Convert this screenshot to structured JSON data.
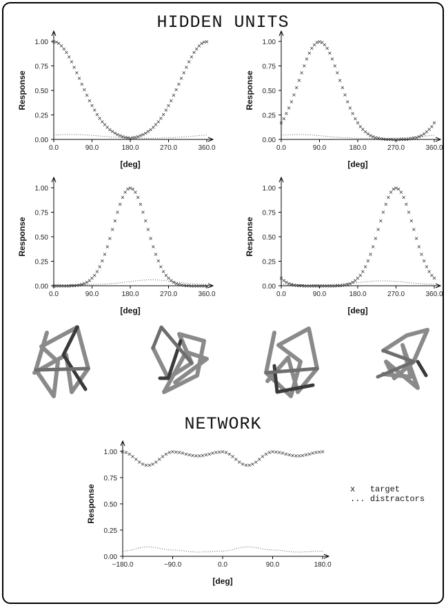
{
  "titles": {
    "hidden": "HIDDEN UNITS",
    "network": "NETWORK"
  },
  "legend": {
    "target_marker": "x",
    "target_label": "target",
    "distractor_marker": "...",
    "distractor_label": "distractors"
  },
  "objects": [
    {
      "name": "wire-object-1"
    },
    {
      "name": "wire-object-2"
    },
    {
      "name": "wire-object-3"
    },
    {
      "name": "wire-object-4"
    }
  ],
  "colors": {
    "marker": "#222222",
    "tube": "#8a8a8a",
    "tube_dark": "#3a3a3a",
    "axis": "#000000"
  },
  "chart_data": [
    {
      "id": "hidden-unit-1",
      "type": "scatter",
      "xlabel": "[deg]",
      "ylabel": "Response",
      "xlim": [
        0,
        360
      ],
      "ylim": [
        0,
        1
      ],
      "xticks": [
        "0.0",
        "90.0",
        "180.0",
        "270.0",
        "360.0"
      ],
      "yticks": [
        "0.00",
        "0.25",
        "0.50",
        "0.75",
        "1.00"
      ],
      "target_curve": {
        "kind": "gaussian",
        "center": 0,
        "sigma": 62,
        "period": 360,
        "peak": 1.0,
        "marker": "x"
      },
      "distractor_curve": {
        "kind": "gaussian",
        "center": 40,
        "sigma": 70,
        "period": 360,
        "peak": 0.05,
        "base": 0.01,
        "style": "dotted"
      }
    },
    {
      "id": "hidden-unit-2",
      "type": "scatter",
      "xlabel": "[deg]",
      "ylabel": "Response",
      "xlim": [
        0,
        360
      ],
      "ylim": [
        0,
        1
      ],
      "xticks": [
        "0.0",
        "90.0",
        "180.0",
        "270.0",
        "360.0"
      ],
      "yticks": [
        "0.00",
        "0.25",
        "0.50",
        "0.75",
        "1.00"
      ],
      "target_curve": {
        "kind": "gaussian",
        "center": 90,
        "sigma": 48,
        "period": 360,
        "peak": 1.0,
        "marker": "x"
      },
      "distractor_curve": {
        "kind": "gaussian",
        "center": 40,
        "sigma": 60,
        "period": 360,
        "peak": 0.05,
        "base": 0.01,
        "style": "dotted"
      }
    },
    {
      "id": "hidden-unit-3",
      "type": "scatter",
      "xlabel": "[deg]",
      "ylabel": "Response",
      "xlim": [
        0,
        360
      ],
      "ylim": [
        0,
        1
      ],
      "xticks": [
        "0.0",
        "90.0",
        "180.0",
        "270.0",
        "360.0"
      ],
      "yticks": [
        "0.00",
        "0.25",
        "0.50",
        "0.75",
        "1.00"
      ],
      "target_curve": {
        "kind": "gaussian",
        "center": 180,
        "sigma": 40,
        "period": 360,
        "peak": 1.0,
        "marker": "x"
      },
      "distractor_curve": {
        "kind": "gaussian",
        "center": 230,
        "sigma": 55,
        "period": 360,
        "peak": 0.06,
        "base": 0.01,
        "style": "dotted"
      }
    },
    {
      "id": "hidden-unit-4",
      "type": "scatter",
      "xlabel": "[deg]",
      "ylabel": "Response",
      "xlim": [
        0,
        360
      ],
      "ylim": [
        0,
        1
      ],
      "xticks": [
        "0.0",
        "90.0",
        "180.0",
        "270.0",
        "360.0"
      ],
      "yticks": [
        "0.00",
        "0.25",
        "0.50",
        "0.75",
        "1.00"
      ],
      "target_curve": {
        "kind": "gaussian",
        "center": 270,
        "sigma": 40,
        "period": 360,
        "peak": 1.0,
        "marker": "x"
      },
      "distractor_curve": {
        "kind": "gaussian",
        "center": 240,
        "sigma": 55,
        "period": 360,
        "peak": 0.05,
        "base": 0.01,
        "style": "dotted"
      }
    },
    {
      "id": "network",
      "type": "scatter",
      "xlabel": "[deg]",
      "ylabel": "Response",
      "xlim": [
        -180,
        180
      ],
      "ylim": [
        0,
        1
      ],
      "xticks": [
        "−180.0",
        "−90.0",
        "0.0",
        "90.0",
        "180.0"
      ],
      "yticks": [
        "0.00",
        "0.25",
        "0.50",
        "0.75",
        "1.00"
      ],
      "target_points": {
        "x": [
          -180,
          -135,
          -90,
          -45,
          0,
          45,
          90,
          135,
          180
        ],
        "y": [
          1.0,
          0.87,
          1.0,
          0.96,
          1.0,
          0.87,
          1.0,
          0.96,
          1.0
        ],
        "marker": "x"
      },
      "distractor_points": {
        "x": [
          -180,
          -135,
          -90,
          -45,
          0,
          45,
          90,
          135,
          180
        ],
        "y": [
          0.05,
          0.09,
          0.06,
          0.04,
          0.05,
          0.09,
          0.06,
          0.04,
          0.05
        ],
        "style": "dotted"
      }
    }
  ]
}
